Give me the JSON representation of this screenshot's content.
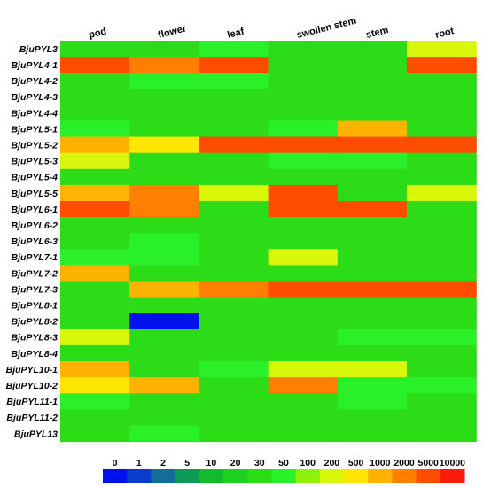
{
  "chart_data": {
    "type": "heatmap",
    "columns": [
      "pod",
      "flower",
      "leaf",
      "swollen stem",
      "stem",
      "root"
    ],
    "rows": [
      "BjuPYL3",
      "BjuPYL4-1",
      "BjuPYL4-2",
      "BjuPYL4-3",
      "BjuPYL4-4",
      "BjuPYL5-1",
      "BjuPYL5-2",
      "BjuPYL5-3",
      "BjuPYL5-4",
      "BjuPYL5-5",
      "BjuPYL6-1",
      "BjuPYL6-2",
      "BjuPYL6-3",
      "BjuPYL7-1",
      "BjuPYL7-2",
      "BjuPYL7-3",
      "BjuPYL8-1",
      "BjuPYL8-2",
      "BjuPYL8-3",
      "BjuPYL8-4",
      "BjuPYL10-1",
      "BjuPYL10-2",
      "BjuPYL11-1",
      "BjuPYL11-2",
      "BjuPYL13"
    ],
    "values": [
      [
        30,
        30,
        50,
        30,
        30,
        200
      ],
      [
        5000,
        2000,
        5000,
        30,
        30,
        5000
      ],
      [
        30,
        50,
        50,
        30,
        30,
        30
      ],
      [
        30,
        30,
        30,
        30,
        30,
        30
      ],
      [
        30,
        30,
        30,
        30,
        30,
        30
      ],
      [
        50,
        30,
        30,
        50,
        1000,
        30
      ],
      [
        1000,
        500,
        5000,
        5000,
        5000,
        5000
      ],
      [
        200,
        30,
        30,
        50,
        50,
        30
      ],
      [
        30,
        30,
        30,
        30,
        30,
        30
      ],
      [
        1000,
        2000,
        300,
        5000,
        30,
        300
      ],
      [
        5000,
        2000,
        30,
        5000,
        5000,
        30
      ],
      [
        30,
        30,
        30,
        30,
        30,
        30
      ],
      [
        30,
        50,
        30,
        30,
        30,
        30
      ],
      [
        50,
        50,
        30,
        300,
        30,
        30
      ],
      [
        1000,
        30,
        30,
        30,
        30,
        30
      ],
      [
        30,
        1000,
        2000,
        5000,
        5000,
        5000
      ],
      [
        30,
        30,
        30,
        30,
        30,
        30
      ],
      [
        30,
        0,
        30,
        30,
        30,
        30
      ],
      [
        300,
        30,
        30,
        30,
        50,
        50
      ],
      [
        30,
        30,
        30,
        30,
        30,
        30
      ],
      [
        1000,
        30,
        50,
        300,
        200,
        30
      ],
      [
        500,
        1000,
        30,
        2000,
        50,
        50
      ],
      [
        50,
        30,
        30,
        30,
        50,
        30
      ],
      [
        30,
        30,
        30,
        30,
        30,
        30
      ],
      [
        30,
        50,
        30,
        30,
        30,
        30
      ]
    ],
    "legend": {
      "ticks": [
        "0",
        "1",
        "2",
        "5",
        "10",
        "20",
        "30",
        "50",
        "100",
        "200",
        "500",
        "1000",
        "2000",
        "5000",
        "10000"
      ],
      "colors": [
        "#0011ee",
        "#0a3ccc",
        "#126e98",
        "#0f9a5a",
        "#12bb2a",
        "#1fd01f",
        "#2bdc17",
        "#2af02a",
        "#8ef20a",
        "#d8f70a",
        "#ffe600",
        "#ffb300",
        "#ff8000",
        "#ff4d00",
        "#ff1a0a"
      ],
      "placement": "bottom"
    },
    "grid": false
  }
}
